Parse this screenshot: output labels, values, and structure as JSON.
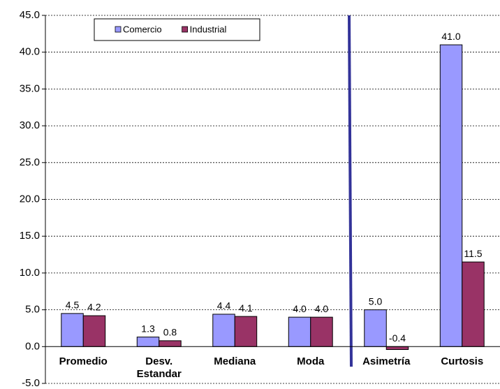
{
  "chart_data": {
    "type": "bar",
    "categories": [
      "Promedio",
      "Desv. Estandar",
      "Mediana",
      "Moda",
      "Asimetría",
      "Curtosis"
    ],
    "series": [
      {
        "name": "Comercio",
        "color": "#9999ff",
        "values": [
          4.5,
          1.3,
          4.4,
          4.0,
          5.0,
          41.0
        ],
        "value_labels": [
          "4.5",
          "1.3",
          "4.4",
          "4.0",
          "5.0",
          "41.0"
        ]
      },
      {
        "name": "Industrial",
        "color": "#993366",
        "values": [
          4.2,
          0.8,
          4.1,
          4.0,
          -0.4,
          11.5
        ],
        "value_labels": [
          "4.2",
          "0.8",
          "4.1",
          "4.0",
          "-0.4",
          "11.5"
        ]
      }
    ],
    "ylim": [
      -5,
      45
    ],
    "yticks": [
      {
        "value": -5,
        "label": "-5.0"
      },
      {
        "value": 0,
        "label": "0.0"
      },
      {
        "value": 5,
        "label": "5.0"
      },
      {
        "value": 10,
        "label": "10.0"
      },
      {
        "value": 15,
        "label": "15.0"
      },
      {
        "value": 20,
        "label": "20.0"
      },
      {
        "value": 25,
        "label": "25.0"
      },
      {
        "value": 30,
        "label": "30.0"
      },
      {
        "value": 35,
        "label": "35.0"
      },
      {
        "value": 40,
        "label": "40.0"
      },
      {
        "value": 45,
        "label": "45.0"
      }
    ],
    "grid": true,
    "legend": "top-left"
  }
}
